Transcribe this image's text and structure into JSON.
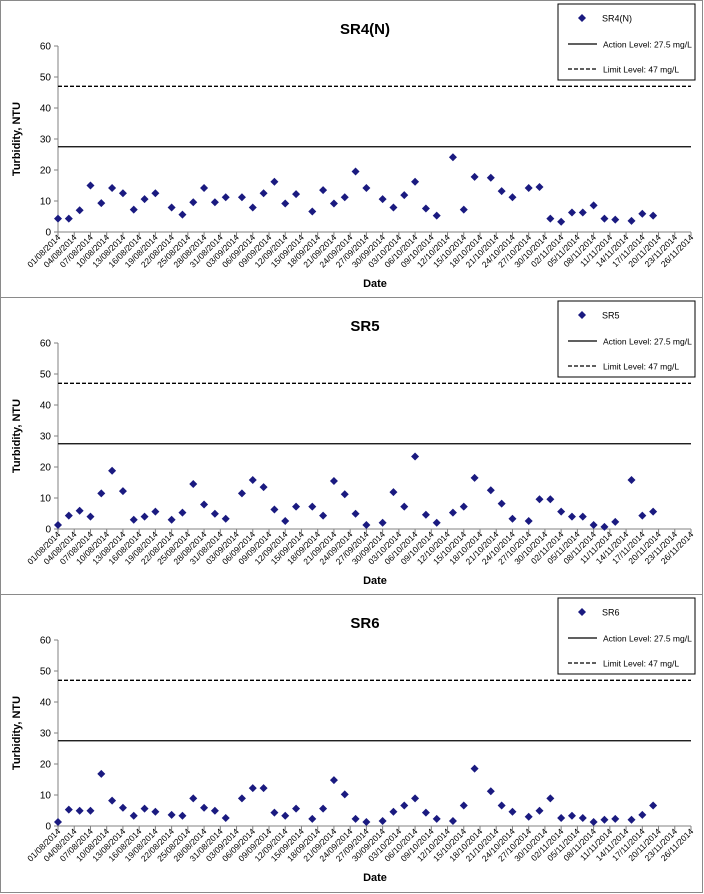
{
  "colors": {
    "marker": "#1a1a80",
    "line": "#000000",
    "axis": "#808080"
  },
  "legend_labels": {
    "action": "Action Level: 27.5 mg/L",
    "limit": "Limit Level: 47 mg/L"
  },
  "axis_labels": {
    "x": "Date",
    "y": "Turbidity, NTU"
  },
  "chart_data": [
    {
      "type": "scatter",
      "title": "SR4(N)",
      "xlabel": "Date",
      "ylabel": "Turbidity, NTU",
      "ylim": [
        0,
        60
      ],
      "yticks": [
        0,
        10,
        20,
        30,
        40,
        50,
        60
      ],
      "tick_labels": [
        "01/08/2014",
        "04/08/2014",
        "07/08/2014",
        "10/08/2014",
        "13/08/2014",
        "16/08/2014",
        "19/08/2014",
        "22/08/2014",
        "25/08/2014",
        "28/08/2014",
        "31/08/2014",
        "03/09/2014",
        "06/09/2014",
        "09/09/2014",
        "12/09/2014",
        "15/09/2014",
        "18/09/2014",
        "21/09/2014",
        "24/09/2014",
        "27/09/2014",
        "30/09/2014",
        "03/10/2014",
        "06/10/2014",
        "09/10/2014",
        "12/10/2014",
        "15/10/2014",
        "18/10/2014",
        "21/10/2014",
        "24/10/2014",
        "27/10/2014",
        "30/10/2014",
        "02/11/2014",
        "05/11/2014",
        "08/11/2014",
        "11/11/2014",
        "14/11/2014",
        "17/11/2014",
        "20/11/2014",
        "23/11/2014",
        "26/11/2014"
      ],
      "legend": "top-right",
      "series": [
        {
          "name": "SR4(N)",
          "points": [
            [
              "01/08/2014",
              4.3
            ],
            [
              "03/08/2014",
              4.3
            ],
            [
              "05/08/2014",
              7.0
            ],
            [
              "07/08/2014",
              15.0
            ],
            [
              "09/08/2014",
              9.3
            ],
            [
              "11/08/2014",
              14.2
            ],
            [
              "13/08/2014",
              12.5
            ],
            [
              "15/08/2014",
              7.2
            ],
            [
              "17/08/2014",
              10.6
            ],
            [
              "19/08/2014",
              12.5
            ],
            [
              "22/08/2014",
              7.9
            ],
            [
              "24/08/2014",
              5.6
            ],
            [
              "26/08/2014",
              9.6
            ],
            [
              "28/08/2014",
              14.2
            ],
            [
              "30/08/2014",
              9.6
            ],
            [
              "01/09/2014",
              11.2
            ],
            [
              "04/09/2014",
              11.2
            ],
            [
              "06/09/2014",
              7.9
            ],
            [
              "08/09/2014",
              12.5
            ],
            [
              "10/09/2014",
              16.2
            ],
            [
              "12/09/2014",
              9.2
            ],
            [
              "14/09/2014",
              12.2
            ],
            [
              "17/09/2014",
              6.6
            ],
            [
              "19/09/2014",
              13.5
            ],
            [
              "21/09/2014",
              9.2
            ],
            [
              "23/09/2014",
              11.2
            ],
            [
              "25/09/2014",
              19.5
            ],
            [
              "27/09/2014",
              14.2
            ],
            [
              "30/09/2014",
              10.6
            ],
            [
              "02/10/2014",
              7.9
            ],
            [
              "04/10/2014",
              11.9
            ],
            [
              "06/10/2014",
              16.2
            ],
            [
              "08/10/2014",
              7.6
            ],
            [
              "10/10/2014",
              5.3
            ],
            [
              "13/10/2014",
              24.1
            ],
            [
              "15/10/2014",
              7.2
            ],
            [
              "17/10/2014",
              17.8
            ],
            [
              "20/10/2014",
              17.5
            ],
            [
              "22/10/2014",
              13.2
            ],
            [
              "24/10/2014",
              11.2
            ],
            [
              "27/10/2014",
              14.2
            ],
            [
              "29/10/2014",
              14.5
            ],
            [
              "31/10/2014",
              4.3
            ],
            [
              "02/11/2014",
              3.3
            ],
            [
              "04/11/2014",
              6.3
            ],
            [
              "06/11/2014",
              6.3
            ],
            [
              "08/11/2014",
              8.6
            ],
            [
              "10/11/2014",
              4.3
            ],
            [
              "12/11/2014",
              4.0
            ],
            [
              "15/11/2014",
              3.6
            ],
            [
              "17/11/2014",
              5.9
            ],
            [
              "19/11/2014",
              5.3
            ]
          ]
        }
      ],
      "reference_lines": [
        {
          "name": "Action Level: 27.5 mg/L",
          "value": 27.5,
          "style": "solid"
        },
        {
          "name": "Limit Level: 47 mg/L",
          "value": 47,
          "style": "dashed"
        }
      ]
    },
    {
      "type": "scatter",
      "title": "SR5",
      "xlabel": "Date",
      "ylabel": "Turbidity, NTU",
      "ylim": [
        0,
        60
      ],
      "yticks": [
        0,
        10,
        20,
        30,
        40,
        50,
        60
      ],
      "tick_labels": [
        "01/08/2014",
        "04/08/2014",
        "07/08/2014",
        "10/08/2014",
        "13/08/2014",
        "16/08/2014",
        "19/08/2014",
        "22/08/2014",
        "25/08/2014",
        "28/08/2014",
        "31/08/2014",
        "03/09/2014",
        "06/09/2014",
        "09/09/2014",
        "12/09/2014",
        "15/09/2014",
        "18/09/2014",
        "21/09/2014",
        "24/09/2014",
        "27/09/2014",
        "30/09/2014",
        "03/10/2014",
        "06/10/2014",
        "09/10/2014",
        "12/10/2014",
        "15/10/2014",
        "18/10/2014",
        "21/10/2014",
        "24/10/2014",
        "27/10/2014",
        "30/10/2014",
        "02/11/2014",
        "05/11/2014",
        "08/11/2014",
        "11/11/2014",
        "14/11/2014",
        "17/11/2014",
        "20/11/2014",
        "23/11/2014",
        "26/11/2014"
      ],
      "legend": "top-right",
      "series": [
        {
          "name": "SR5",
          "points": [
            [
              "01/08/2014",
              1.3
            ],
            [
              "03/08/2014",
              4.3
            ],
            [
              "05/08/2014",
              5.9
            ],
            [
              "07/08/2014",
              4.0
            ],
            [
              "09/08/2014",
              11.5
            ],
            [
              "11/08/2014",
              18.8
            ],
            [
              "13/08/2014",
              12.2
            ],
            [
              "15/08/2014",
              3.0
            ],
            [
              "17/08/2014",
              4.0
            ],
            [
              "19/08/2014",
              5.6
            ],
            [
              "22/08/2014",
              3.0
            ],
            [
              "24/08/2014",
              5.3
            ],
            [
              "26/08/2014",
              14.5
            ],
            [
              "28/08/2014",
              7.9
            ],
            [
              "30/08/2014",
              4.9
            ],
            [
              "01/09/2014",
              3.3
            ],
            [
              "04/09/2014",
              11.5
            ],
            [
              "06/09/2014",
              15.8
            ],
            [
              "08/09/2014",
              13.5
            ],
            [
              "10/09/2014",
              6.3
            ],
            [
              "12/09/2014",
              2.6
            ],
            [
              "14/09/2014",
              7.2
            ],
            [
              "17/09/2014",
              7.2
            ],
            [
              "19/09/2014",
              4.3
            ],
            [
              "21/09/2014",
              15.5
            ],
            [
              "23/09/2014",
              11.2
            ],
            [
              "25/09/2014",
              4.9
            ],
            [
              "27/09/2014",
              1.3
            ],
            [
              "30/09/2014",
              2.0
            ],
            [
              "02/10/2014",
              11.9
            ],
            [
              "04/10/2014",
              7.2
            ],
            [
              "06/10/2014",
              23.4
            ],
            [
              "08/10/2014",
              4.6
            ],
            [
              "10/10/2014",
              2.0
            ],
            [
              "13/10/2014",
              5.3
            ],
            [
              "15/10/2014",
              7.2
            ],
            [
              "17/10/2014",
              16.5
            ],
            [
              "20/10/2014",
              12.5
            ],
            [
              "22/10/2014",
              8.2
            ],
            [
              "24/10/2014",
              3.3
            ],
            [
              "27/10/2014",
              2.6
            ],
            [
              "29/10/2014",
              9.6
            ],
            [
              "31/10/2014",
              9.6
            ],
            [
              "02/11/2014",
              5.6
            ],
            [
              "04/11/2014",
              4.0
            ],
            [
              "06/11/2014",
              4.0
            ],
            [
              "08/11/2014",
              1.3
            ],
            [
              "10/11/2014",
              0.7
            ],
            [
              "12/11/2014",
              2.3
            ],
            [
              "15/11/2014",
              15.8
            ],
            [
              "17/11/2014",
              4.3
            ],
            [
              "19/11/2014",
              5.6
            ]
          ]
        }
      ],
      "reference_lines": [
        {
          "name": "Action Level: 27.5 mg/L",
          "value": 27.5,
          "style": "solid"
        },
        {
          "name": "Limit Level: 47 mg/L",
          "value": 47,
          "style": "dashed"
        }
      ]
    },
    {
      "type": "scatter",
      "title": "SR6",
      "xlabel": "Date",
      "ylabel": "Turbidity, NTU",
      "ylim": [
        0,
        60
      ],
      "yticks": [
        0,
        10,
        20,
        30,
        40,
        50,
        60
      ],
      "tick_labels": [
        "01/08/2014",
        "04/08/2014",
        "07/08/2014",
        "10/08/2014",
        "13/08/2014",
        "16/08/2014",
        "19/08/2014",
        "22/08/2014",
        "25/08/2014",
        "28/08/2014",
        "31/08/2014",
        "03/09/2014",
        "06/09/2014",
        "09/09/2014",
        "12/09/2014",
        "15/09/2014",
        "18/09/2014",
        "21/09/2014",
        "24/09/2014",
        "27/09/2014",
        "30/09/2014",
        "03/10/2014",
        "06/10/2014",
        "09/10/2014",
        "12/10/2014",
        "15/10/2014",
        "18/10/2014",
        "21/10/2014",
        "24/10/2014",
        "27/10/2014",
        "30/10/2014",
        "02/11/2014",
        "05/11/2014",
        "08/11/2014",
        "11/11/2014",
        "14/11/2014",
        "17/11/2014",
        "20/11/2014",
        "23/11/2014",
        "26/11/2014"
      ],
      "legend": "top-right",
      "series": [
        {
          "name": "SR6",
          "points": [
            [
              "01/08/2014",
              1.3
            ],
            [
              "03/08/2014",
              5.3
            ],
            [
              "05/08/2014",
              4.9
            ],
            [
              "07/08/2014",
              4.9
            ],
            [
              "09/08/2014",
              16.8
            ],
            [
              "11/08/2014",
              8.2
            ],
            [
              "13/08/2014",
              5.9
            ],
            [
              "15/08/2014",
              3.3
            ],
            [
              "17/08/2014",
              5.6
            ],
            [
              "19/08/2014",
              4.6
            ],
            [
              "22/08/2014",
              3.6
            ],
            [
              "24/08/2014",
              3.3
            ],
            [
              "26/08/2014",
              8.9
            ],
            [
              "28/08/2014",
              5.9
            ],
            [
              "30/08/2014",
              4.9
            ],
            [
              "01/09/2014",
              2.6
            ],
            [
              "04/09/2014",
              8.9
            ],
            [
              "06/09/2014",
              12.2
            ],
            [
              "08/09/2014",
              12.2
            ],
            [
              "10/09/2014",
              4.3
            ],
            [
              "12/09/2014",
              3.3
            ],
            [
              "14/09/2014",
              5.6
            ],
            [
              "17/09/2014",
              2.3
            ],
            [
              "19/09/2014",
              5.6
            ],
            [
              "21/09/2014",
              14.8
            ],
            [
              "23/09/2014",
              10.2
            ],
            [
              "25/09/2014",
              2.3
            ],
            [
              "27/09/2014",
              1.3
            ],
            [
              "30/09/2014",
              1.6
            ],
            [
              "02/10/2014",
              4.6
            ],
            [
              "04/10/2014",
              6.6
            ],
            [
              "06/10/2014",
              8.9
            ],
            [
              "08/10/2014",
              4.3
            ],
            [
              "10/10/2014",
              2.3
            ],
            [
              "13/10/2014",
              1.6
            ],
            [
              "15/10/2014",
              6.6
            ],
            [
              "17/10/2014",
              18.5
            ],
            [
              "20/10/2014",
              11.2
            ],
            [
              "22/10/2014",
              6.6
            ],
            [
              "24/10/2014",
              4.6
            ],
            [
              "27/10/2014",
              3.0
            ],
            [
              "29/10/2014",
              4.9
            ],
            [
              "31/10/2014",
              8.9
            ],
            [
              "02/11/2014",
              2.6
            ],
            [
              "04/11/2014",
              3.3
            ],
            [
              "06/11/2014",
              2.6
            ],
            [
              "08/11/2014",
              1.3
            ],
            [
              "10/11/2014",
              2.0
            ],
            [
              "12/11/2014",
              2.3
            ],
            [
              "15/11/2014",
              2.0
            ],
            [
              "17/11/2014",
              3.6
            ],
            [
              "19/11/2014",
              6.6
            ]
          ]
        }
      ],
      "reference_lines": [
        {
          "name": "Action Level: 27.5 mg/L",
          "value": 27.5,
          "style": "solid"
        },
        {
          "name": "Limit Level: 47 mg/L",
          "value": 47,
          "style": "dashed"
        }
      ]
    }
  ]
}
